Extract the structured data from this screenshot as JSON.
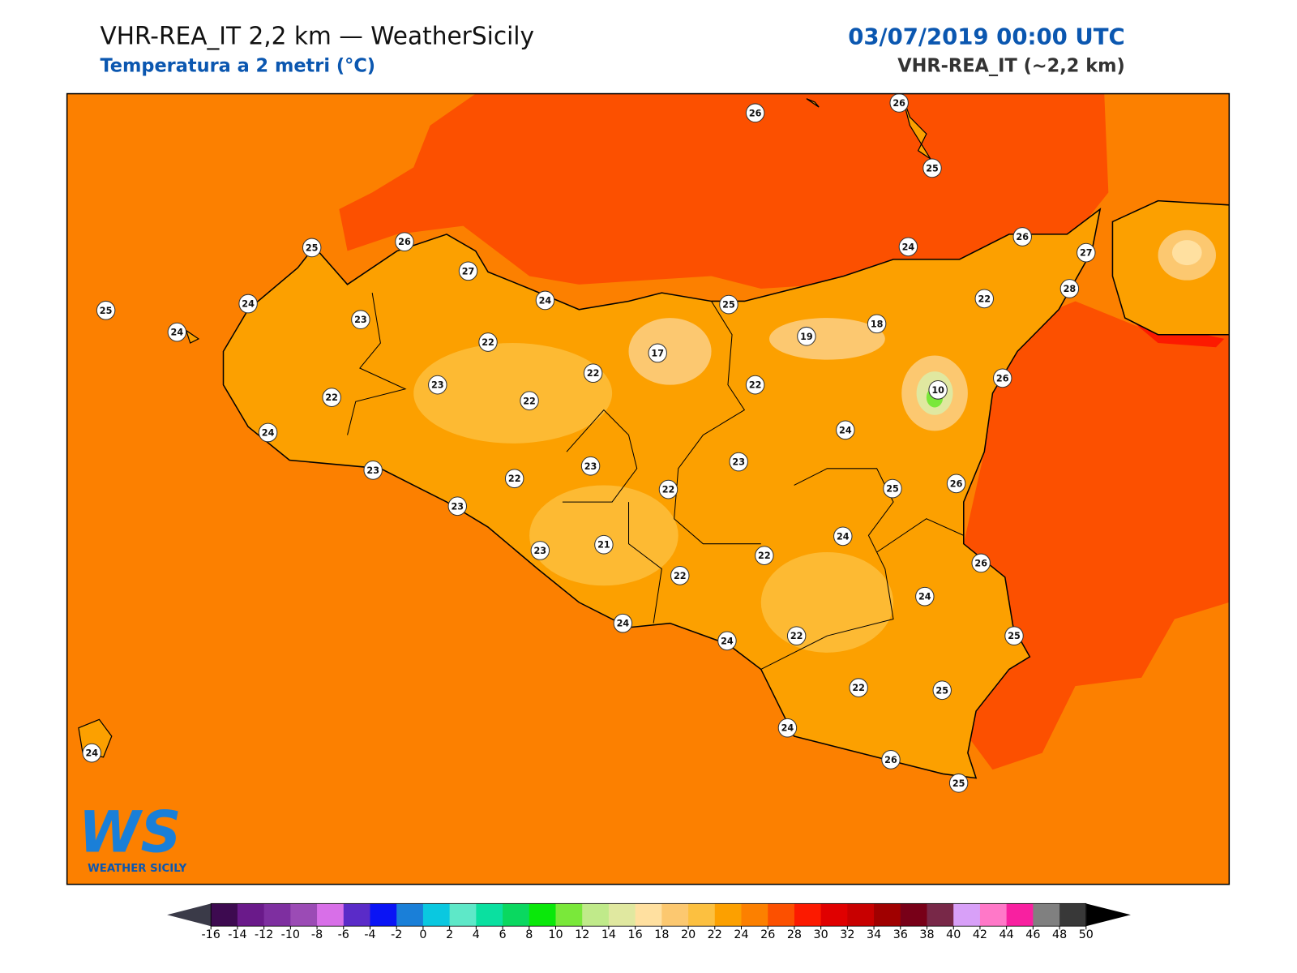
{
  "header": {
    "title": "VHR-REA_IT 2,2 km — WeatherSicily",
    "subtitle": "Temperatura a 2 metri (°C)",
    "datetime": "03/07/2019 00:00 UTC",
    "model": "VHR-REA_IT (~2,2 km)"
  },
  "logo": {
    "mark": "WS",
    "name": "WEATHER SICILY"
  },
  "map": {
    "stations": [
      26,
      26,
      25,
      25,
      26,
      27,
      25,
      24,
      24,
      23,
      24,
      25,
      24,
      26,
      27,
      28,
      22,
      22,
      17,
      19,
      18,
      22,
      22,
      10,
      26,
      22,
      23,
      22,
      24,
      24,
      23,
      23,
      23,
      22,
      22,
      25,
      26,
      23,
      24,
      21,
      23,
      22,
      26,
      22,
      24,
      24,
      24,
      22,
      25,
      22,
      25,
      24,
      26,
      25,
      24
    ]
  },
  "colorbar": {
    "ticks": [
      -16,
      -14,
      -12,
      -10,
      -8,
      -6,
      -4,
      -2,
      0,
      2,
      4,
      6,
      8,
      10,
      12,
      14,
      16,
      18,
      20,
      22,
      24,
      26,
      28,
      30,
      32,
      34,
      36,
      38,
      40,
      42,
      44,
      46,
      48,
      50
    ],
    "colors": [
      "#3d0a50",
      "#6a1a8a",
      "#7e2fa0",
      "#9b4bb5",
      "#d86fe8",
      "#5a2bc8",
      "#0a14f5",
      "#1a7fd8",
      "#0ac8e0",
      "#5ee8c8",
      "#0ae0a0",
      "#0ad860",
      "#0ae80a",
      "#7ae83a",
      "#c0ea8a",
      "#e0e8a0",
      "#ffe0a0",
      "#fcc870",
      "#fcc040",
      "#fca000",
      "#fc8000",
      "#fc5000",
      "#fc1a00",
      "#e00000",
      "#c80000",
      "#a00000",
      "#780018",
      "#782848",
      "#d8a0f8",
      "#ff78c8",
      "#f820a0",
      "#808080",
      "#383838"
    ],
    "under_color": "#3a3a48",
    "over_color": "#000000"
  }
}
